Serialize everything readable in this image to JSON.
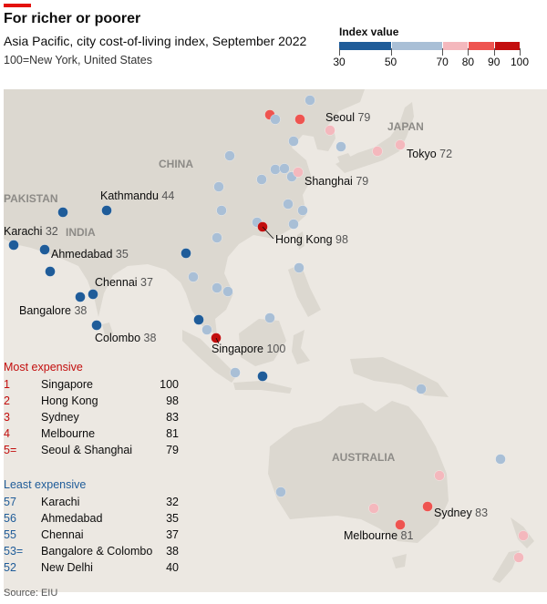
{
  "header": {
    "title": "For richer or poorer",
    "subtitle": "Asia Pacific, city cost-of-living index, September 2022",
    "note": "100=New York, United States"
  },
  "legend": {
    "title": "Index value",
    "ticks": [
      "30",
      "50",
      "70",
      "80",
      "90",
      "100"
    ],
    "colors": [
      "#1f5c99",
      "#a9bfd6",
      "#f4b8bd",
      "#ee5450",
      "#c30e0e"
    ]
  },
  "map_labels": {
    "countries": [
      "CHINA",
      "JAPAN",
      "PAKISTAN",
      "INDIA",
      "AUSTRALIA"
    ]
  },
  "chart_data": {
    "type": "scatter",
    "title": "For richer or poorer",
    "subtitle": "Asia Pacific, city cost-of-living index, September 2022",
    "note": "100=New York, United States",
    "value_name": "Index value",
    "color_scale": {
      "breaks": [
        30,
        50,
        70,
        80,
        90,
        100
      ],
      "colors": [
        "#1f5c99",
        "#a9bfd6",
        "#f4b8bd",
        "#ee5450",
        "#c30e0e"
      ]
    },
    "labelled_cities": [
      {
        "name": "Seoul",
        "value": 79
      },
      {
        "name": "Tokyo",
        "value": 72
      },
      {
        "name": "Shanghai",
        "value": 79
      },
      {
        "name": "Kathmandu",
        "value": 44
      },
      {
        "name": "Karachi",
        "value": 32
      },
      {
        "name": "Ahmedabad",
        "value": 35
      },
      {
        "name": "Hong Kong",
        "value": 98
      },
      {
        "name": "Chennai",
        "value": 37
      },
      {
        "name": "Bangalore",
        "value": 38
      },
      {
        "name": "Colombo",
        "value": 38
      },
      {
        "name": "Singapore",
        "value": 100
      },
      {
        "name": "Sydney",
        "value": 83
      },
      {
        "name": "Melbourne",
        "value": 81
      }
    ],
    "most_expensive": [
      {
        "rank": "1",
        "city": "Singapore",
        "value": 100
      },
      {
        "rank": "2",
        "city": "Hong Kong",
        "value": 98
      },
      {
        "rank": "3",
        "city": "Sydney",
        "value": 83
      },
      {
        "rank": "4",
        "city": "Melbourne",
        "value": 81
      },
      {
        "rank": "5=",
        "city": "Seoul & Shanghai",
        "value": 79
      }
    ],
    "least_expensive": [
      {
        "rank": "57",
        "city": "Karachi",
        "value": 32
      },
      {
        "rank": "56",
        "city": "Ahmedabad",
        "value": 35
      },
      {
        "rank": "55",
        "city": "Chennai",
        "value": 37
      },
      {
        "rank": "53=",
        "city": "Bangalore & Colombo",
        "value": 38
      },
      {
        "rank": "52",
        "city": "New Delhi",
        "value": 40
      }
    ]
  },
  "lists": {
    "most_title": "Most expensive",
    "least_title": "Least expensive"
  },
  "source": "Source: EIU"
}
